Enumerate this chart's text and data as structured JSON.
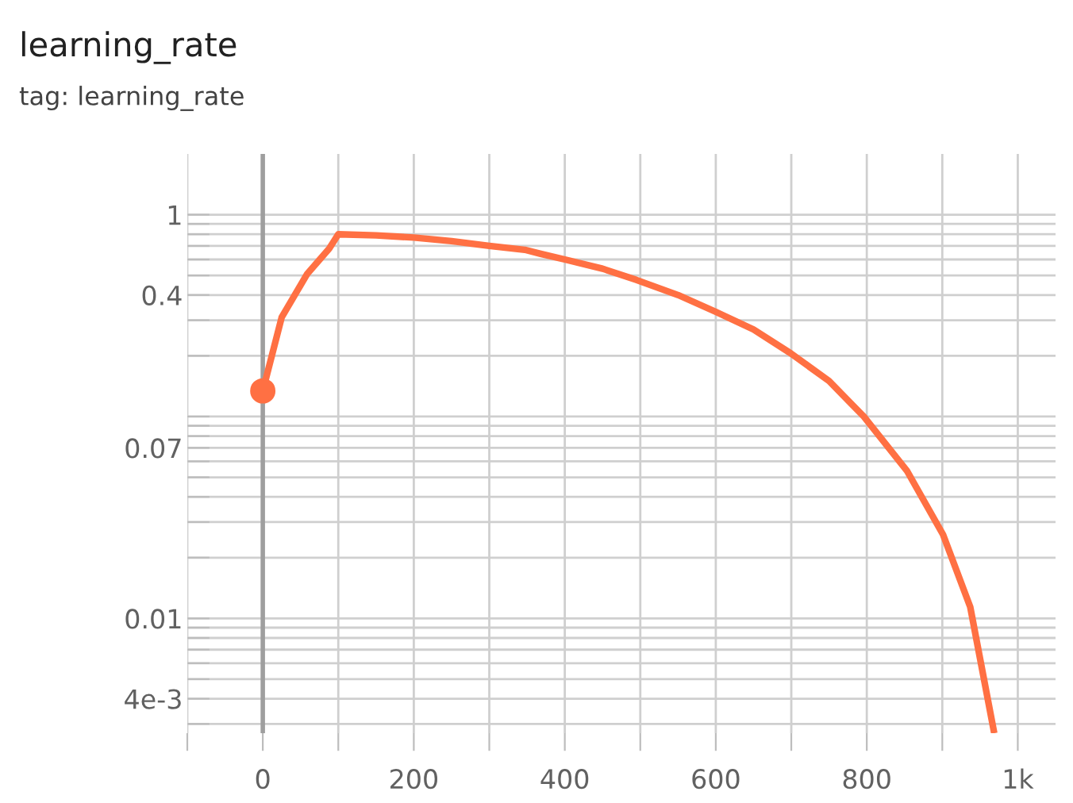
{
  "chart_data": {
    "type": "line",
    "title": "learning_rate",
    "subtitle": "tag: learning_rate",
    "log": "y",
    "grid": true,
    "line_style": "solid",
    "xlim": [
      -100,
      1050
    ],
    "xticks": [
      {
        "value": -100,
        "label": null
      },
      0,
      {
        "value": 100,
        "label": null
      },
      200,
      {
        "value": 300,
        "label": null
      },
      400,
      {
        "value": 500,
        "label": null
      },
      600,
      {
        "value": 700,
        "label": null
      },
      800,
      {
        "value": 900,
        "label": null
      },
      {
        "value": 1000,
        "label": "1k"
      }
    ],
    "ylim": [
      0.0027,
      2
    ],
    "yticks": [
      1,
      {
        "value": 0.9,
        "label": null
      },
      {
        "value": 0.8,
        "label": null
      },
      {
        "value": 0.7,
        "label": null
      },
      {
        "value": 0.6,
        "label": null
      },
      {
        "value": 0.5,
        "label": null
      },
      0.4,
      {
        "value": 0.3,
        "label": null
      },
      {
        "value": 0.2,
        "label": null
      },
      {
        "value": 0.1,
        "label": null
      },
      {
        "value": 0.09,
        "label": null
      },
      {
        "value": 0.08,
        "label": null
      },
      0.07,
      {
        "value": 0.06,
        "label": null
      },
      {
        "value": 0.05,
        "label": null
      },
      {
        "value": 0.04,
        "label": null
      },
      {
        "value": 0.03,
        "label": null
      },
      {
        "value": 0.02,
        "label": null
      },
      0.01,
      {
        "value": 0.009,
        "label": null
      },
      {
        "value": 0.008,
        "label": null
      },
      {
        "value": 0.007,
        "label": null
      },
      {
        "value": 0.006,
        "label": null
      },
      {
        "value": 0.005,
        "label": null
      },
      {
        "value": 0.004,
        "label": "4e-3"
      },
      {
        "value": 0.003,
        "label": null
      }
    ],
    "ref_lines": [
      {
        "axis": "x",
        "value": 0,
        "label": null,
        "color": "#9e9e9e"
      }
    ],
    "series": [
      {
        "color": "#ff7043",
        "x": [
          0,
          25,
          59,
          88,
          100,
          150,
          200,
          250,
          300,
          347,
          368,
          400,
          450,
          495,
          550,
          600,
          650,
          699,
          750,
          796,
          853,
          901,
          937,
          968
        ],
        "values": [
          0.134,
          0.31,
          0.51,
          0.68,
          0.8,
          0.79,
          0.77,
          0.74,
          0.7,
          0.67,
          0.64,
          0.6,
          0.54,
          0.475,
          0.4,
          0.33,
          0.27,
          0.206,
          0.15,
          0.1,
          0.054,
          0.026,
          0.0114,
          0.0028
        ]
      },
      {
        "type": "scatter",
        "marker": "circle",
        "color": "#ff7043",
        "x": [
          0
        ],
        "values": [
          0.134
        ]
      }
    ]
  }
}
